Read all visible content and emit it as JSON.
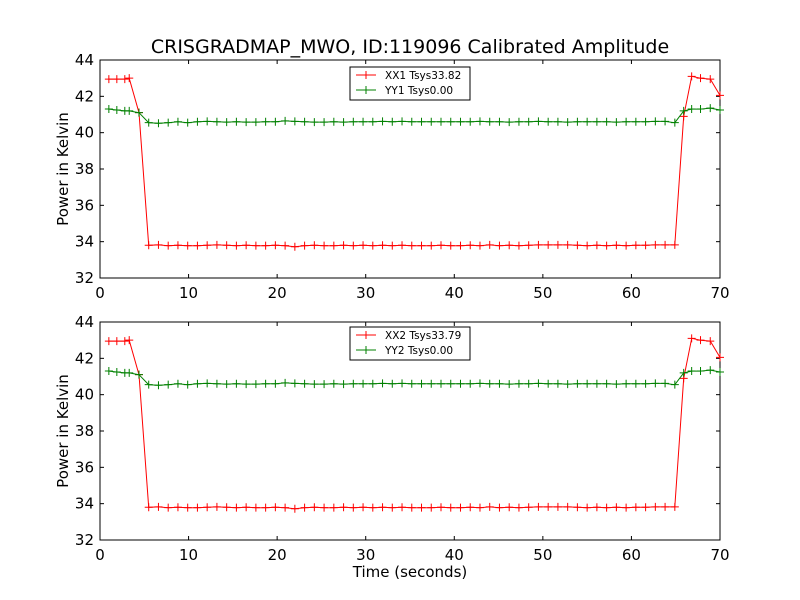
{
  "figure": {
    "title": "CRISGRADMAP_MWO, ID:119096 Calibrated Amplitude"
  },
  "chart_data": [
    {
      "type": "line",
      "ylabel": "Power in Kelvin",
      "xlabel": "",
      "xlim": [
        0,
        70
      ],
      "ylim": [
        32,
        44
      ],
      "xticks": [
        0,
        10,
        20,
        30,
        40,
        50,
        60,
        70
      ],
      "yticks": [
        32,
        34,
        36,
        38,
        40,
        42,
        44
      ],
      "grid": false,
      "legend_position": "top-center",
      "series": [
        {
          "name": "XX1 Tsys33.82",
          "color": "#ff0000",
          "x": [
            1.0,
            1.9,
            2.8,
            3.3,
            4.4,
            5.5,
            6.6,
            7.7,
            8.8,
            9.9,
            11.0,
            12.1,
            13.2,
            14.3,
            15.4,
            16.5,
            17.6,
            18.7,
            19.8,
            20.9,
            22.0,
            23.1,
            24.2,
            25.3,
            26.4,
            27.5,
            28.6,
            29.7,
            30.8,
            31.9,
            33.0,
            34.1,
            35.2,
            36.3,
            37.4,
            38.5,
            39.6,
            40.7,
            41.8,
            42.9,
            44.0,
            45.1,
            46.2,
            47.3,
            48.4,
            49.5,
            50.6,
            51.7,
            52.8,
            53.9,
            55.0,
            56.1,
            57.2,
            58.3,
            59.4,
            60.5,
            61.6,
            62.7,
            63.8,
            64.9,
            65.9,
            66.8,
            67.8,
            68.9,
            70.0
          ],
          "values": [
            42.95,
            42.95,
            42.95,
            43.0,
            41.1,
            33.8,
            33.82,
            33.78,
            33.8,
            33.78,
            33.78,
            33.8,
            33.82,
            33.8,
            33.78,
            33.8,
            33.78,
            33.78,
            33.8,
            33.78,
            33.72,
            33.78,
            33.8,
            33.78,
            33.78,
            33.8,
            33.78,
            33.8,
            33.78,
            33.8,
            33.78,
            33.8,
            33.78,
            33.78,
            33.78,
            33.8,
            33.78,
            33.78,
            33.8,
            33.78,
            33.82,
            33.78,
            33.8,
            33.78,
            33.8,
            33.82,
            33.82,
            33.82,
            33.82,
            33.8,
            33.78,
            33.8,
            33.78,
            33.8,
            33.78,
            33.8,
            33.8,
            33.82,
            33.82,
            33.82,
            40.9,
            43.1,
            43.0,
            42.95,
            42.05
          ]
        },
        {
          "name": "YY1 Tsys0.00",
          "color": "#008000",
          "x": [
            1.0,
            1.9,
            2.8,
            3.3,
            4.4,
            5.5,
            6.6,
            7.7,
            8.8,
            9.9,
            11.0,
            12.1,
            13.2,
            14.3,
            15.4,
            16.5,
            17.6,
            18.7,
            19.8,
            20.9,
            22.0,
            23.1,
            24.2,
            25.3,
            26.4,
            27.5,
            28.6,
            29.7,
            30.8,
            31.9,
            33.0,
            34.1,
            35.2,
            36.3,
            37.4,
            38.5,
            39.6,
            40.7,
            41.8,
            42.9,
            44.0,
            45.1,
            46.2,
            47.3,
            48.4,
            49.5,
            50.6,
            51.7,
            52.8,
            53.9,
            55.0,
            56.1,
            57.2,
            58.3,
            59.4,
            60.5,
            61.6,
            62.7,
            63.8,
            64.9,
            65.9,
            66.8,
            67.8,
            68.9,
            70.0
          ],
          "values": [
            41.3,
            41.25,
            41.2,
            41.2,
            41.1,
            40.55,
            40.52,
            40.55,
            40.6,
            40.55,
            40.6,
            40.62,
            40.6,
            40.58,
            40.6,
            40.58,
            40.58,
            40.6,
            40.6,
            40.65,
            40.62,
            40.6,
            40.58,
            40.58,
            40.6,
            40.58,
            40.6,
            40.6,
            40.6,
            40.62,
            40.6,
            40.62,
            40.6,
            40.6,
            40.6,
            40.6,
            40.6,
            40.6,
            40.6,
            40.62,
            40.6,
            40.6,
            40.58,
            40.6,
            40.6,
            40.62,
            40.6,
            40.6,
            40.58,
            40.6,
            40.6,
            40.6,
            40.6,
            40.58,
            40.6,
            40.6,
            40.6,
            40.62,
            40.62,
            40.55,
            41.2,
            41.3,
            41.3,
            41.35,
            41.25
          ]
        }
      ]
    },
    {
      "type": "line",
      "ylabel": "Power in Kelvin",
      "xlabel": "Time (seconds)",
      "xlim": [
        0,
        70
      ],
      "ylim": [
        32,
        44
      ],
      "xticks": [
        0,
        10,
        20,
        30,
        40,
        50,
        60,
        70
      ],
      "yticks": [
        32,
        34,
        36,
        38,
        40,
        42,
        44
      ],
      "grid": false,
      "legend_position": "top-center",
      "series": [
        {
          "name": "XX2 Tsys33.79",
          "color": "#ff0000",
          "x": [
            1.0,
            1.9,
            2.8,
            3.3,
            4.4,
            5.5,
            6.6,
            7.7,
            8.8,
            9.9,
            11.0,
            12.1,
            13.2,
            14.3,
            15.4,
            16.5,
            17.6,
            18.7,
            19.8,
            20.9,
            22.0,
            23.1,
            24.2,
            25.3,
            26.4,
            27.5,
            28.6,
            29.7,
            30.8,
            31.9,
            33.0,
            34.1,
            35.2,
            36.3,
            37.4,
            38.5,
            39.6,
            40.7,
            41.8,
            42.9,
            44.0,
            45.1,
            46.2,
            47.3,
            48.4,
            49.5,
            50.6,
            51.7,
            52.8,
            53.9,
            55.0,
            56.1,
            57.2,
            58.3,
            59.4,
            60.5,
            61.6,
            62.7,
            63.8,
            64.9,
            65.9,
            66.8,
            67.8,
            68.9,
            70.0
          ],
          "values": [
            42.95,
            42.95,
            42.95,
            43.0,
            41.1,
            33.8,
            33.82,
            33.78,
            33.8,
            33.78,
            33.78,
            33.8,
            33.82,
            33.8,
            33.78,
            33.8,
            33.78,
            33.78,
            33.8,
            33.78,
            33.72,
            33.78,
            33.8,
            33.78,
            33.78,
            33.8,
            33.78,
            33.8,
            33.78,
            33.8,
            33.78,
            33.8,
            33.78,
            33.78,
            33.78,
            33.8,
            33.78,
            33.78,
            33.8,
            33.78,
            33.82,
            33.78,
            33.8,
            33.78,
            33.8,
            33.82,
            33.82,
            33.82,
            33.82,
            33.8,
            33.78,
            33.8,
            33.78,
            33.8,
            33.78,
            33.8,
            33.8,
            33.82,
            33.82,
            33.82,
            40.9,
            43.1,
            43.0,
            42.95,
            42.05
          ]
        },
        {
          "name": "YY2 Tsys0.00",
          "color": "#008000",
          "x": [
            1.0,
            1.9,
            2.8,
            3.3,
            4.4,
            5.5,
            6.6,
            7.7,
            8.8,
            9.9,
            11.0,
            12.1,
            13.2,
            14.3,
            15.4,
            16.5,
            17.6,
            18.7,
            19.8,
            20.9,
            22.0,
            23.1,
            24.2,
            25.3,
            26.4,
            27.5,
            28.6,
            29.7,
            30.8,
            31.9,
            33.0,
            34.1,
            35.2,
            36.3,
            37.4,
            38.5,
            39.6,
            40.7,
            41.8,
            42.9,
            44.0,
            45.1,
            46.2,
            47.3,
            48.4,
            49.5,
            50.6,
            51.7,
            52.8,
            53.9,
            55.0,
            56.1,
            57.2,
            58.3,
            59.4,
            60.5,
            61.6,
            62.7,
            63.8,
            64.9,
            65.9,
            66.8,
            67.8,
            68.9,
            70.0
          ],
          "values": [
            41.3,
            41.25,
            41.2,
            41.2,
            41.1,
            40.55,
            40.52,
            40.55,
            40.6,
            40.55,
            40.6,
            40.62,
            40.6,
            40.58,
            40.6,
            40.58,
            40.58,
            40.6,
            40.6,
            40.65,
            40.62,
            40.6,
            40.58,
            40.58,
            40.6,
            40.58,
            40.6,
            40.6,
            40.6,
            40.62,
            40.6,
            40.62,
            40.6,
            40.6,
            40.6,
            40.6,
            40.6,
            40.6,
            40.6,
            40.62,
            40.6,
            40.6,
            40.58,
            40.6,
            40.6,
            40.62,
            40.6,
            40.6,
            40.58,
            40.6,
            40.6,
            40.6,
            40.6,
            40.58,
            40.6,
            40.6,
            40.6,
            40.62,
            40.62,
            40.55,
            41.2,
            41.3,
            41.3,
            41.35,
            41.25
          ]
        }
      ]
    }
  ]
}
